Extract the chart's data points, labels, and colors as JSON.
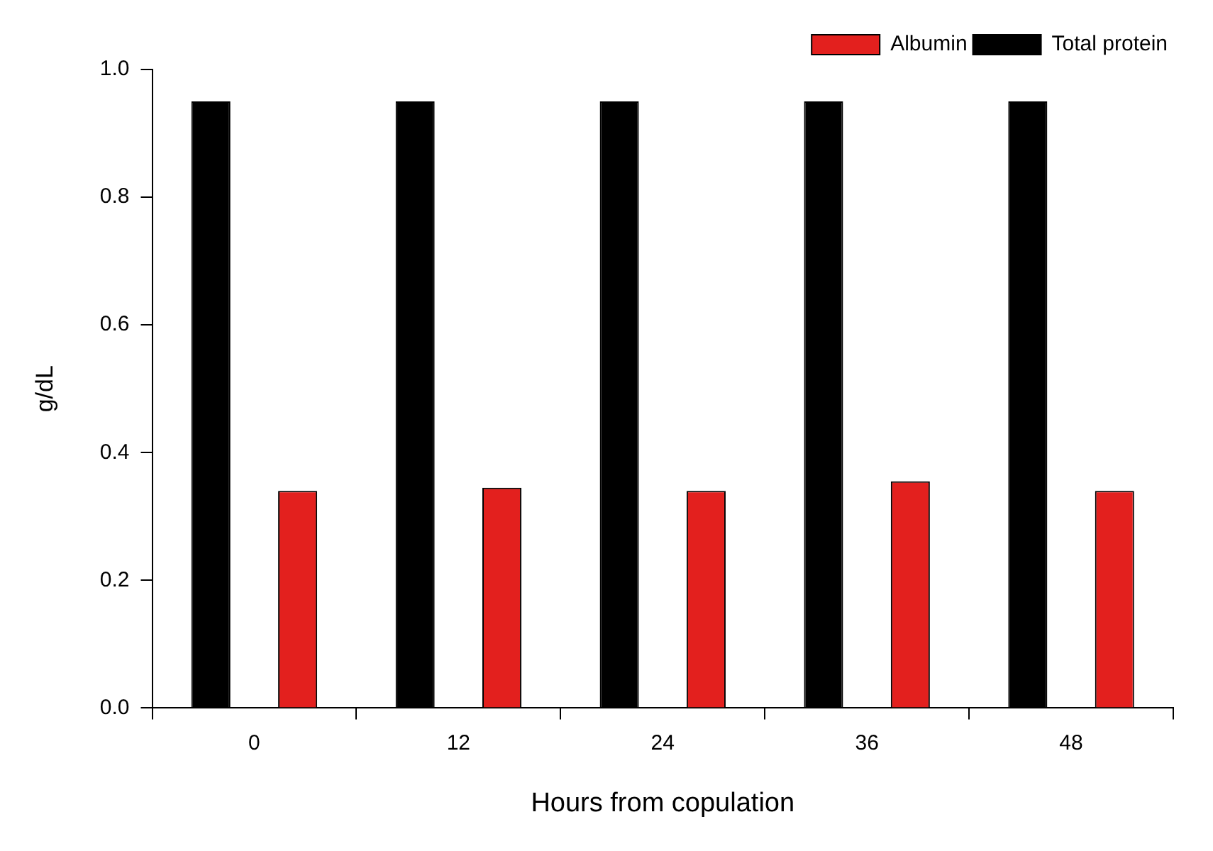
{
  "chart_data": {
    "type": "bar",
    "xlabel": "Hours from copulation",
    "ylabel": "g/dL",
    "categories": [
      "0",
      "12",
      "24",
      "36",
      "48"
    ],
    "series": [
      {
        "name": "Total protein",
        "color": "#000000",
        "values": [
          0.95,
          0.95,
          0.95,
          0.95,
          0.95
        ]
      },
      {
        "name": "Albumin",
        "color": "#e3201e",
        "values": [
          0.34,
          0.345,
          0.34,
          0.355,
          0.34
        ]
      }
    ],
    "ylim": [
      0,
      1
    ],
    "yticks": [
      {
        "value": 0,
        "label": "0.0"
      },
      {
        "value": 0.2,
        "label": "0.2"
      },
      {
        "value": 0.4,
        "label": "0.4"
      },
      {
        "value": 0.6,
        "label": "0.6"
      },
      {
        "value": 0.8,
        "label": "0.8"
      },
      {
        "value": 1,
        "label": "1.0"
      }
    ],
    "grid": false,
    "legend": "top right"
  }
}
